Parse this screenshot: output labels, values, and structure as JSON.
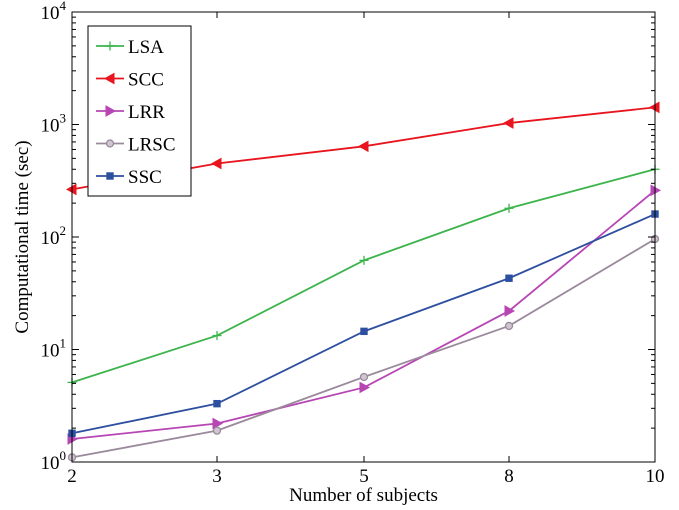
{
  "chart_data": {
    "type": "line",
    "xlabel": "Number of subjects",
    "ylabel": "Computational time (sec)",
    "yscale": "log",
    "ylim": [
      1,
      10000
    ],
    "x": [
      2,
      3,
      5,
      8,
      10
    ],
    "x_tick_labels": [
      "2",
      "3",
      "5",
      "8",
      "10"
    ],
    "y_ticks": [
      {
        "base": "10",
        "exp": "0",
        "value": 1
      },
      {
        "base": "10",
        "exp": "1",
        "value": 10
      },
      {
        "base": "10",
        "exp": "2",
        "value": 100
      },
      {
        "base": "10",
        "exp": "3",
        "value": 1000
      },
      {
        "base": "10",
        "exp": "4",
        "value": 10000
      }
    ],
    "grid": false,
    "legend_position": "top-left",
    "series": [
      {
        "name": "LSA",
        "color": "#3cb44b",
        "marker": "plus",
        "values": [
          5.1,
          13.3,
          62,
          180,
          400
        ]
      },
      {
        "name": "SCC",
        "color": "#e8141e",
        "marker": "triangle-left",
        "values": [
          265,
          450,
          640,
          1030,
          1420
        ]
      },
      {
        "name": "LRR",
        "color": "#b746b4",
        "marker": "triangle-right",
        "values": [
          1.6,
          2.2,
          4.6,
          22,
          260
        ]
      },
      {
        "name": "LRSC",
        "color": "#9a8a9c",
        "marker": "circle",
        "values": [
          1.1,
          1.9,
          5.7,
          16.2,
          96
        ]
      },
      {
        "name": "SSC",
        "color": "#2e4fa0",
        "marker": "square",
        "values": [
          1.8,
          3.3,
          14.5,
          43,
          160
        ]
      }
    ]
  }
}
